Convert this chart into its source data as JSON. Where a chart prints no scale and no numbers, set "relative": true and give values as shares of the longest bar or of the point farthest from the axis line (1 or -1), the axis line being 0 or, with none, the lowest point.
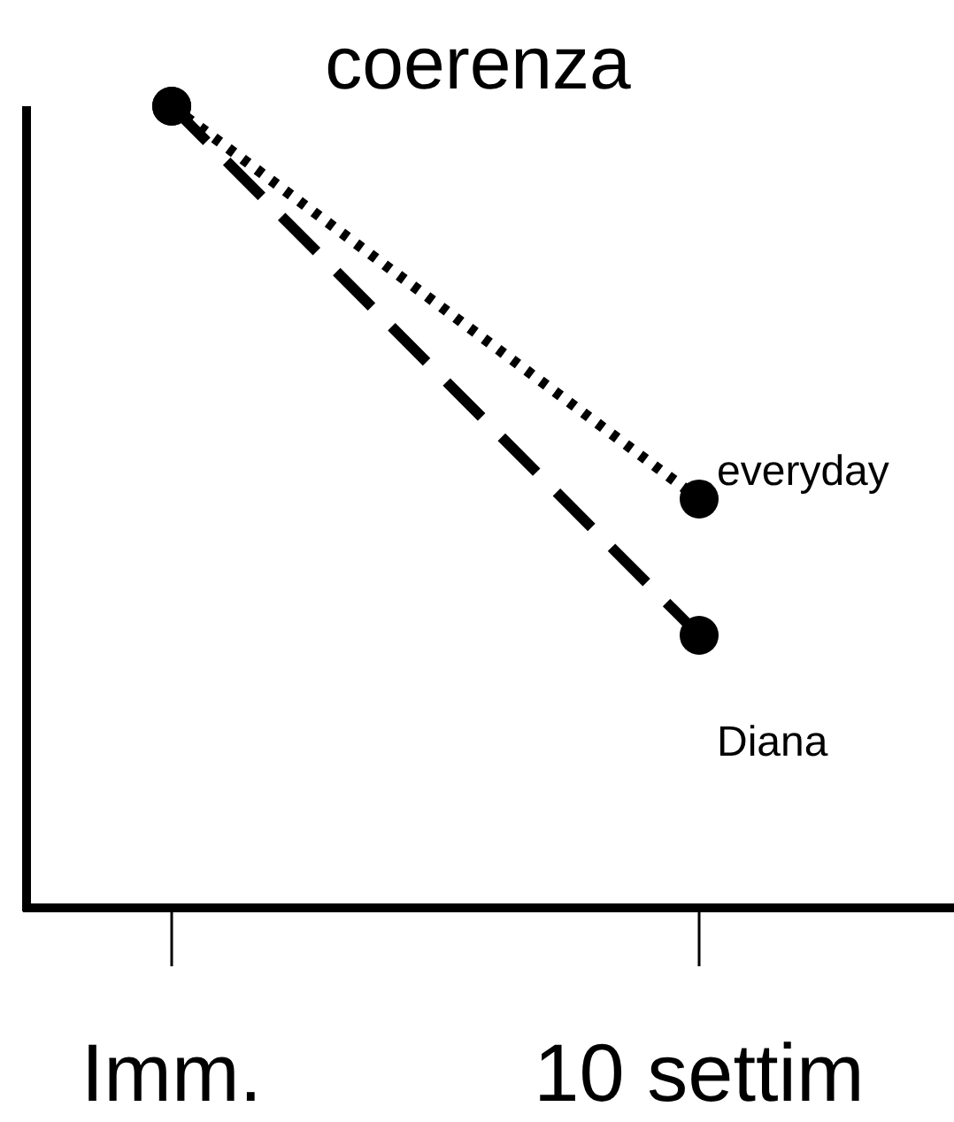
{
  "chart_data": {
    "type": "line",
    "title": "coerenza",
    "categories": [
      "Imm.",
      "10 settim"
    ],
    "relative": true,
    "marker": "circle",
    "legend": false,
    "series": [
      {
        "name": "everyday",
        "color": "#000000",
        "values": [
          1,
          0.51
        ],
        "line_style": "dotted"
      },
      {
        "name": "Diana",
        "color": "#000000",
        "values": [
          1,
          0.34
        ],
        "line_style": "dashed"
      }
    ]
  }
}
